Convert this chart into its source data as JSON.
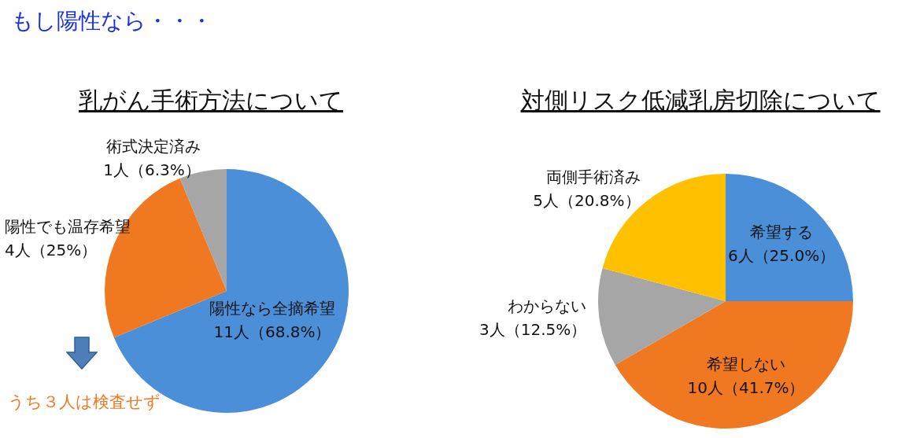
{
  "chart_data": [
    {
      "type": "pie",
      "title": "乳がん手術方法について",
      "categories": [
        "陽性なら全摘希望",
        "陽性でも温存希望",
        "術式決定済み"
      ],
      "values": [
        11,
        4,
        1
      ],
      "colors": [
        "#4a8fd8",
        "#f07820",
        "#a6a6a6"
      ],
      "value_labels": [
        "11人（68.8%）",
        "4人（25%）",
        "1人（6.3%）"
      ],
      "annotations": [
        "もし陽性なら・・・",
        "うち３人は検査せず"
      ]
    },
    {
      "type": "pie",
      "title": "対側リスク低減乳房切除について",
      "categories": [
        "希望する",
        "希望しない",
        "わからない",
        "両側手術済み"
      ],
      "values": [
        6,
        10,
        3,
        5
      ],
      "colors": [
        "#4a8fd8",
        "#f07820",
        "#a6a6a6",
        "#ffc000"
      ],
      "value_labels": [
        "6人（25.0%）",
        "10人（41.7%）",
        "3人（12.5%）",
        "5人（20.8%）"
      ]
    }
  ]
}
